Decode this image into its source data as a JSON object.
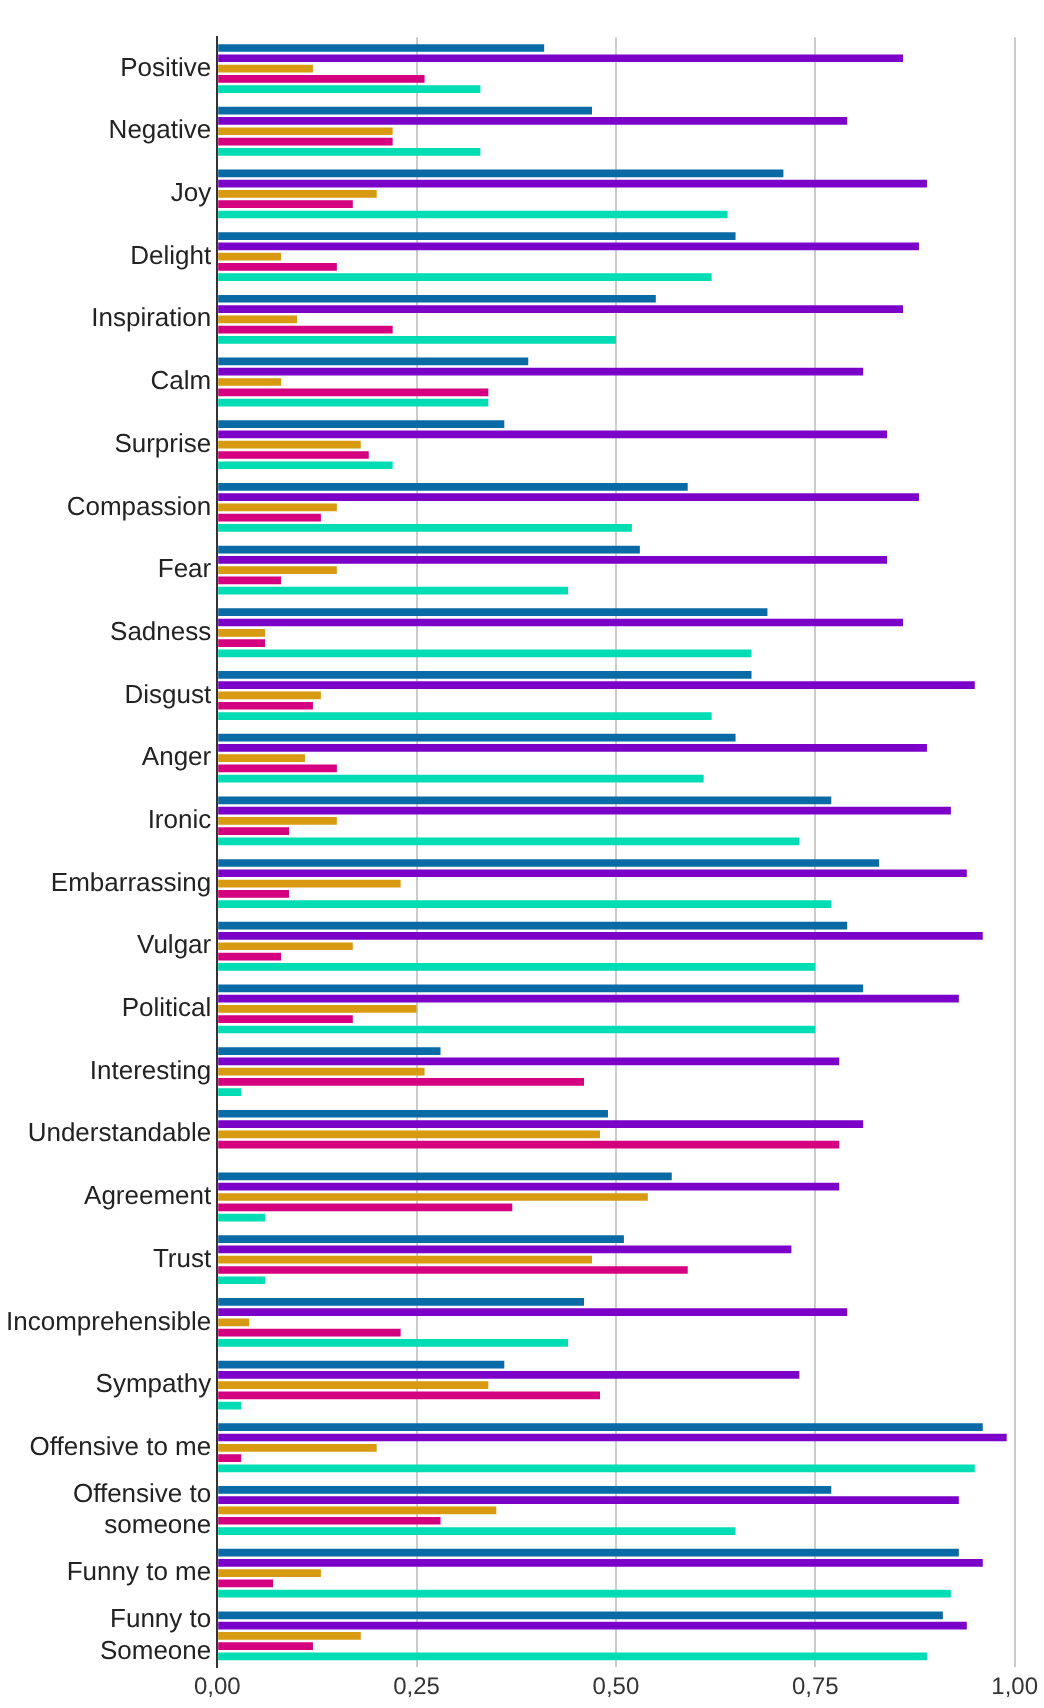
{
  "chart_data": {
    "type": "bar",
    "orientation": "horizontal",
    "categories": [
      "Positive",
      "Negative",
      "Joy",
      "Delight",
      "Inspiration",
      "Calm",
      "Surprise",
      "Compassion",
      "Fear",
      "Sadness",
      "Disgust",
      "Anger",
      "Ironic",
      "Embarrassing",
      "Vulgar",
      "Political",
      "Interesting",
      "Understandable",
      "Agreement",
      "Trust",
      "Incomprehensible",
      "Sympathy",
      "Offensive to me",
      "Offensive to\nsomeone",
      "Funny to me",
      "Funny to\nSomeone"
    ],
    "series": [
      {
        "color": "#0a6aa6",
        "values": [
          0.41,
          0.47,
          0.71,
          0.65,
          0.55,
          0.39,
          0.36,
          0.59,
          0.53,
          0.69,
          0.67,
          0.65,
          0.77,
          0.83,
          0.79,
          0.81,
          0.28,
          0.49,
          0.57,
          0.51,
          0.46,
          0.36,
          0.96,
          0.77,
          0.93,
          0.91
        ]
      },
      {
        "color": "#7b00c8",
        "values": [
          0.86,
          0.79,
          0.89,
          0.88,
          0.86,
          0.81,
          0.84,
          0.88,
          0.84,
          0.86,
          0.95,
          0.89,
          0.92,
          0.94,
          0.96,
          0.93,
          0.78,
          0.81,
          0.78,
          0.72,
          0.79,
          0.73,
          0.99,
          0.93,
          0.96,
          0.94
        ]
      },
      {
        "color": "#d89a10",
        "values": [
          0.12,
          0.22,
          0.2,
          0.08,
          0.1,
          0.08,
          0.18,
          0.15,
          0.15,
          0.06,
          0.13,
          0.11,
          0.15,
          0.23,
          0.17,
          0.25,
          0.26,
          0.48,
          0.54,
          0.47,
          0.04,
          0.34,
          0.2,
          0.35,
          0.13,
          0.18
        ]
      },
      {
        "color": "#d4007f",
        "values": [
          0.26,
          0.22,
          0.17,
          0.15,
          0.22,
          0.34,
          0.19,
          0.13,
          0.08,
          0.06,
          0.12,
          0.15,
          0.09,
          0.09,
          0.08,
          0.17,
          0.46,
          0.78,
          0.37,
          0.59,
          0.23,
          0.48,
          0.03,
          0.28,
          0.07,
          0.12
        ]
      },
      {
        "color": "#00dcb4",
        "values": [
          0.33,
          0.33,
          0.64,
          0.62,
          0.5,
          0.34,
          0.22,
          0.52,
          0.44,
          0.67,
          0.62,
          0.61,
          0.73,
          0.77,
          0.75,
          0.75,
          0.03,
          null,
          0.06,
          0.06,
          0.44,
          0.03,
          0.95,
          0.65,
          0.92,
          0.89
        ]
      }
    ],
    "xlim": [
      0,
      1
    ],
    "xticks": [
      {
        "value": 0,
        "label": "0,00"
      },
      {
        "value": 0.25,
        "label": "0,25"
      },
      {
        "value": 0.5,
        "label": "0,50"
      },
      {
        "value": 0.75,
        "label": "0,75"
      },
      {
        "value": 1,
        "label": "1,00"
      }
    ],
    "grid": "x",
    "legend": false
  }
}
